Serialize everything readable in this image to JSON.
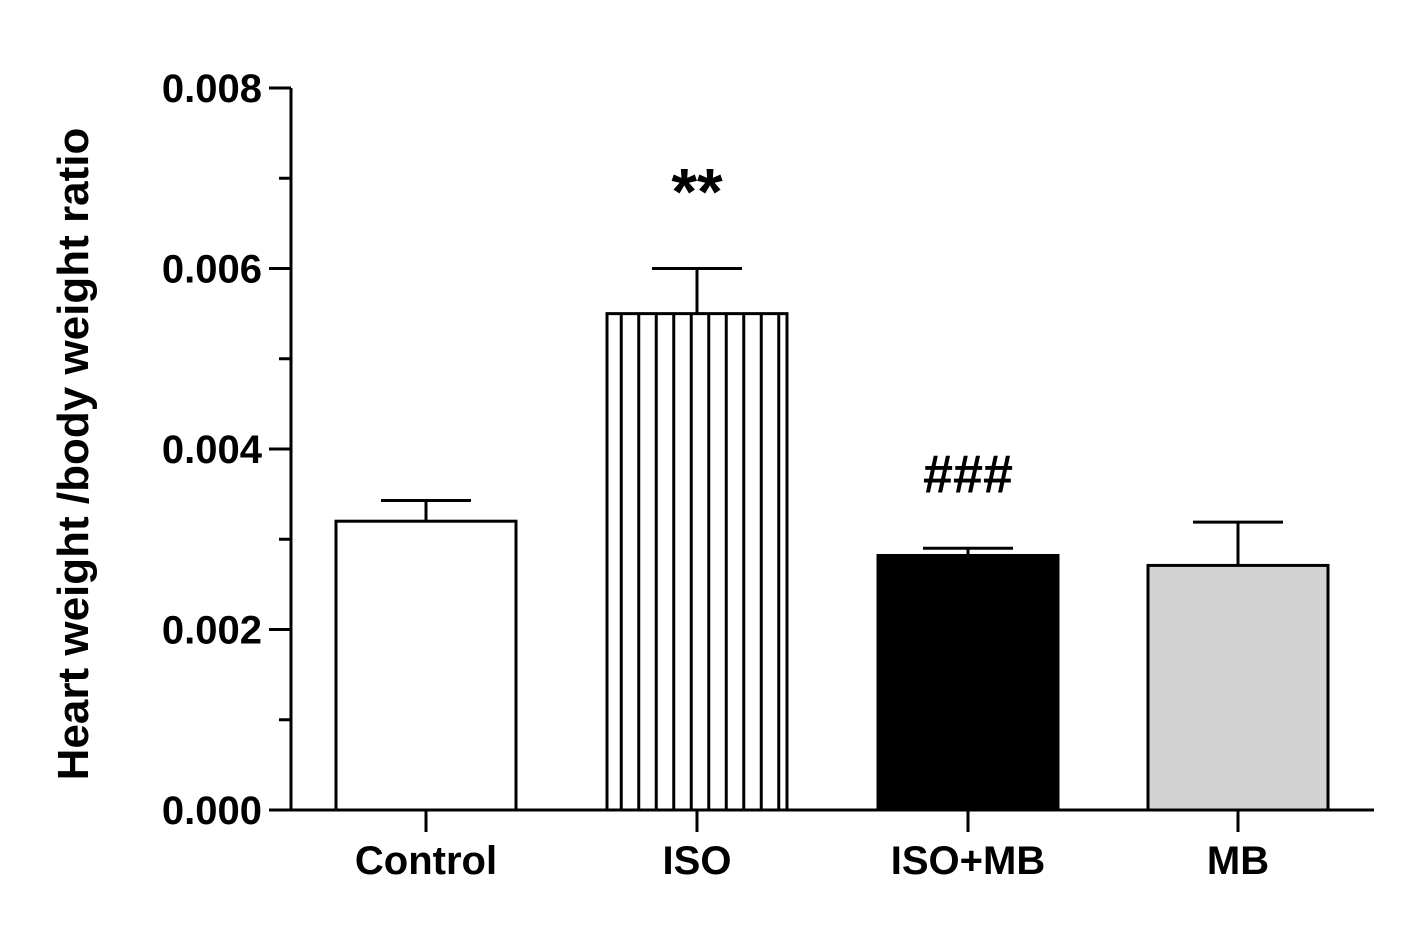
{
  "chart_data": {
    "type": "bar",
    "title": "",
    "xlabel": "",
    "ylabel": "Heart weight /body weight  ratio",
    "ylim": [
      0,
      0.008
    ],
    "y_ticks": [
      "0.000",
      "0.002",
      "0.004",
      "0.006",
      "0.008"
    ],
    "y_tick_values": [
      0,
      0.002,
      0.004,
      0.006,
      0.008
    ],
    "y_minor_tick_values": [
      0.001,
      0.003,
      0.005,
      0.007
    ],
    "categories": [
      "Control",
      "ISO",
      "ISO+MB",
      "MB"
    ],
    "values": [
      0.0032,
      0.0055,
      0.00282,
      0.00271
    ],
    "errors": [
      0.00023,
      0.0005,
      8e-05,
      0.00048
    ],
    "fills": [
      "#ffffff",
      "vertical-stripes",
      "#000000",
      "#d3d3d3"
    ],
    "annotations": [
      {
        "category": "ISO",
        "text": "**"
      },
      {
        "category": "ISO+MB",
        "text": "###"
      }
    ],
    "grid": false,
    "legend": "none"
  }
}
